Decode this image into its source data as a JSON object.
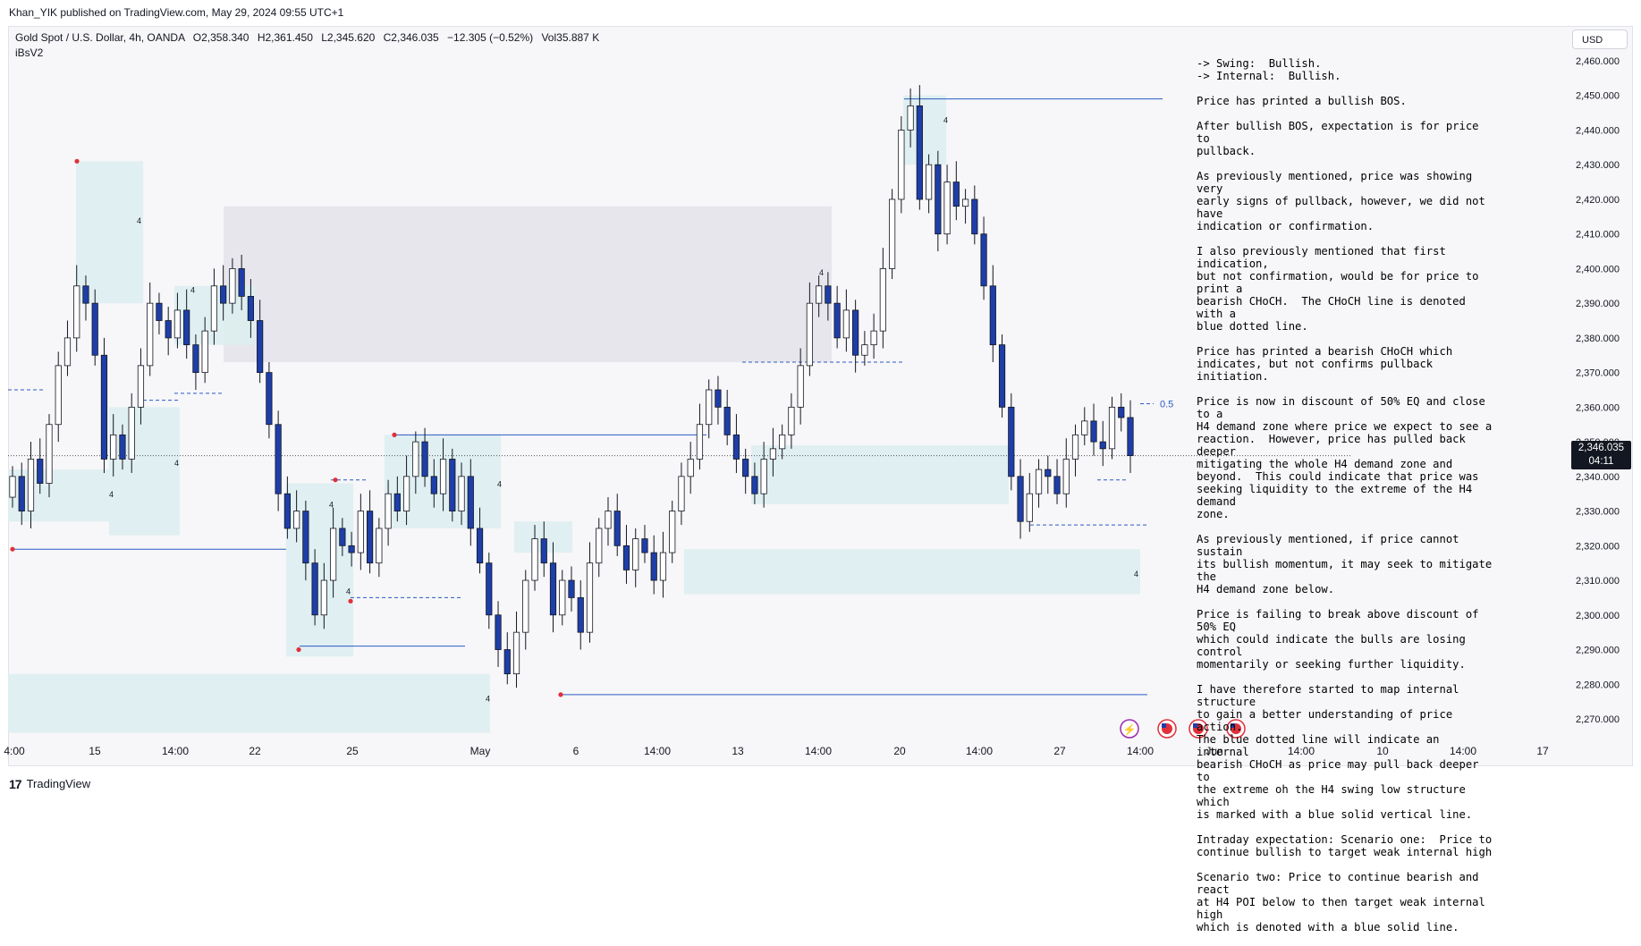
{
  "header": {
    "publish_line": "Khan_YIK published on TradingView.com, May 29, 2024 09:55 UTC+1"
  },
  "legend": {
    "symbol": "Gold Spot / U.S. Dollar, 4h, OANDA",
    "open": "O2,358.340",
    "high": "H2,361.450",
    "low": "L2,345.620",
    "close": "C2,346.035",
    "change": "−12.305 (−0.52%)",
    "volume": "Vol35.887 K",
    "indicator": "iBsV2"
  },
  "currency": "USD",
  "last_price": {
    "value": "2,346.035",
    "countdown": "04:11"
  },
  "footer": {
    "brand": "TradingView"
  },
  "notes": [
    "-> Swing:  Bullish.\n-> Internal:  Bullish.",
    "Price has printed a bullish BOS.",
    "After bullish BOS, expectation is for price to\npullback.",
    "As previously mentioned, price was showing very\nearly signs of pullback, however, we did not have\nindication or confirmation.",
    "I also previously mentioned that first indication,\nbut not confirmation, would be for price to print a\nbearish CHoCH.  The CHoCH line is denoted with a\nblue dotted line.",
    "Price has printed a bearish CHoCH which\nindicates, but not confirms pullback initiation.",
    "Price is now in discount of 50% EQ and close to a\nH4 demand zone where price we expect to see a\nreaction.  However, price has pulled back deeper\nmitigating the whole H4 demand zone and\nbeyond.  This could indicate that price was\nseeking liquidity to the extreme of the H4 demand\nzone.",
    "As previously mentioned, if price cannot sustain\nits bullish momentum, it may seek to mitigate the\nH4 demand zone below.",
    "Price is failing to break above discount of 50% EQ\nwhich could indicate the bulls are losing control\nmomentarily or seeking further liquidity.",
    "I have therefore started to map internal structure\nto gain a better understanding of price action.\nThe blue dotted line will indicate an internal\nbearish CHoCH as price may pull back deeper to\nthe extreme oh the H4 swing low structure which\nis marked with a blue solid vertical line.",
    "Intraday expectation: Scenario one:  Price to\ncontinue bullish to target weak internal high",
    "Scenario two: Price to continue bearish and react\nat H4 POI below to then target weak internal high\nwhich is denoted with a blue solid line."
  ],
  "colors": {
    "bull_candle": "#ffffff",
    "bear_candle": "#1e3ea8",
    "wick": "#131722",
    "zone_demand": "#ddeef0",
    "zone_supply": "#e4e4ea",
    "structure_line": "#2a5cc4",
    "swing_point": "#e0303a"
  },
  "chart_data": {
    "type": "candlestick",
    "symbol": "XAUUSD",
    "timeframe": "4h",
    "ylim": [
      2265,
      2465
    ],
    "y_ticks": [
      2460,
      2450,
      2440,
      2430,
      2420,
      2410,
      2400,
      2390,
      2380,
      2370,
      2360,
      2350,
      2340,
      2330,
      2320,
      2310,
      2300,
      2290,
      2280,
      2270
    ],
    "x_ticks": [
      "4:00",
      "15",
      "14:00",
      "22",
      "25",
      "May",
      "6",
      "14:00",
      "13",
      "14:00",
      "20",
      "14:00",
      "27",
      "14:00",
      "Jun",
      "14:00",
      "10",
      "14:00",
      "17"
    ],
    "eq_label": "0.5",
    "eq_level": 2361,
    "zone_label": "4",
    "close": [
      2340,
      2330,
      2345,
      2338,
      2355,
      2372,
      2380,
      2395,
      2390,
      2375,
      2345,
      2352,
      2345,
      2360,
      2372,
      2390,
      2385,
      2380,
      2388,
      2378,
      2370,
      2382,
      2395,
      2390,
      2400,
      2392,
      2385,
      2370,
      2355,
      2335,
      2325,
      2330,
      2315,
      2300,
      2310,
      2325,
      2320,
      2318,
      2330,
      2315,
      2325,
      2335,
      2330,
      2340,
      2350,
      2340,
      2335,
      2345,
      2330,
      2340,
      2325,
      2315,
      2300,
      2290,
      2283,
      2295,
      2310,
      2322,
      2315,
      2300,
      2310,
      2305,
      2295,
      2315,
      2325,
      2330,
      2320,
      2313,
      2322,
      2318,
      2310,
      2318,
      2330,
      2340,
      2345,
      2355,
      2365,
      2360,
      2352,
      2345,
      2340,
      2335,
      2345,
      2348,
      2352,
      2360,
      2372,
      2390,
      2395,
      2390,
      2380,
      2388,
      2375,
      2378,
      2382,
      2400,
      2420,
      2440,
      2447,
      2420,
      2430,
      2410,
      2425,
      2418,
      2420,
      2410,
      2395,
      2378,
      2360,
      2340,
      2327,
      2335,
      2342,
      2340,
      2335,
      2345,
      2352,
      2356,
      2350,
      2348,
      2360,
      2357,
      2346
    ]
  }
}
